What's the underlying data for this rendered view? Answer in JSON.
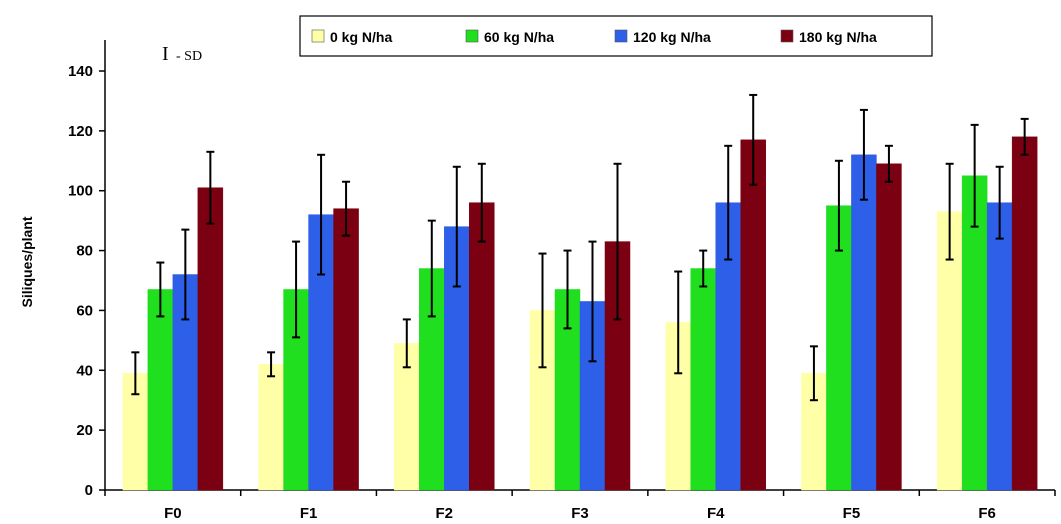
{
  "chart_data": {
    "type": "bar",
    "title": "",
    "xlabel": "",
    "ylabel": "Siliques/plant",
    "ylim": [
      0,
      140
    ],
    "yticks": [
      0,
      20,
      40,
      60,
      80,
      100,
      120,
      140
    ],
    "grid": false,
    "legend_position": "top",
    "categories": [
      "F0",
      "F1",
      "F2",
      "F3",
      "F4",
      "F5",
      "F6"
    ],
    "series": [
      {
        "name": "0 kg N/ha",
        "color": "#FFFFA8",
        "values": [
          39,
          42,
          49,
          60,
          56,
          39,
          93
        ],
        "errors": [
          7,
          4,
          8,
          19,
          17,
          9,
          16
        ]
      },
      {
        "name": "60 kg N/ha",
        "color": "#1FDF1F",
        "values": [
          67,
          67,
          74,
          67,
          74,
          95,
          105
        ],
        "errors": [
          9,
          16,
          16,
          13,
          6,
          15,
          17
        ]
      },
      {
        "name": "120 kg N/ha",
        "color": "#2E5FE8",
        "values": [
          72,
          92,
          88,
          63,
          96,
          112,
          96
        ],
        "errors": [
          15,
          20,
          20,
          20,
          19,
          15,
          12
        ]
      },
      {
        "name": "180 kg N/ha",
        "color": "#7A0012",
        "values": [
          101,
          94,
          96,
          83,
          117,
          109,
          118
        ],
        "errors": [
          12,
          9,
          13,
          26,
          15,
          6,
          6
        ]
      }
    ],
    "annotation": {
      "bar": "I",
      "text": "- SD"
    }
  }
}
